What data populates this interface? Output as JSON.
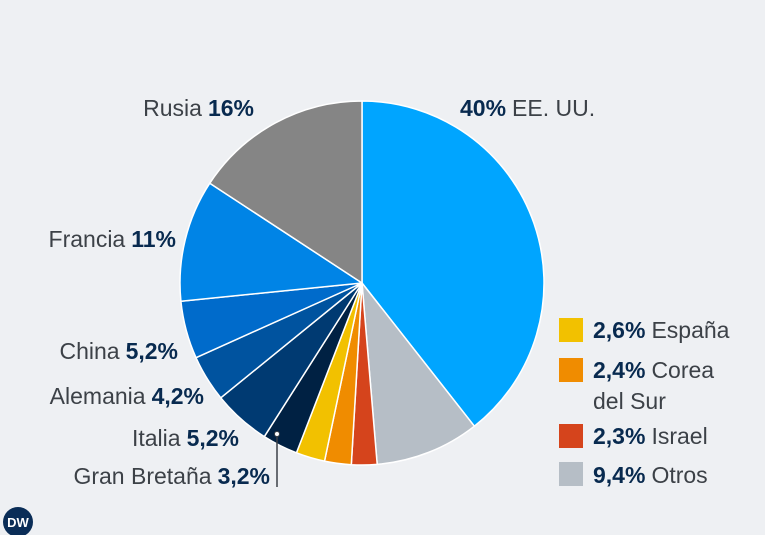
{
  "chart_data": {
    "type": "pie",
    "start_angle_deg": 0,
    "direction": "clockwise",
    "slices": [
      {
        "label": "EE. UU.",
        "value_label": "40%",
        "value": 40.0,
        "color": "#00a5ff"
      },
      {
        "label": "Otros",
        "value_label": "9,4%",
        "value": 9.4,
        "color": "#b6bec6"
      },
      {
        "label": "Israel",
        "value_label": "2,3%",
        "value": 2.3,
        "color": "#d5441c"
      },
      {
        "label": "Corea del Sur",
        "value_label": "2,4%",
        "value": 2.4,
        "color": "#f08c00"
      },
      {
        "label": "España",
        "value_label": "2,6%",
        "value": 2.6,
        "color": "#f2c100"
      },
      {
        "label": "Gran Bretaña",
        "value_label": "3,2%",
        "value": 3.2,
        "color": "#002143"
      },
      {
        "label": "Italia",
        "value_label": "5,2%",
        "value": 5.2,
        "color": "#003a72"
      },
      {
        "label": "Alemania",
        "value_label": "4,2%",
        "value": 4.2,
        "color": "#00539f"
      },
      {
        "label": "China",
        "value_label": "5,2%",
        "value": 5.2,
        "color": "#006bcb"
      },
      {
        "label": "Francia",
        "value_label": "11%",
        "value": 11.0,
        "color": "#0084e6"
      },
      {
        "label": "Rusia",
        "value_label": "16%",
        "value": 16.0,
        "color": "#858585"
      }
    ],
    "legend": {
      "placement": "right",
      "items": [
        {
          "value_label": "2,6%",
          "label_lines": [
            "España"
          ],
          "color": "#f2c100"
        },
        {
          "value_label": "2,4%",
          "label_lines": [
            "Corea",
            "del Sur"
          ],
          "color": "#f08c00"
        },
        {
          "value_label": "2,3%",
          "label_lines": [
            "Israel"
          ],
          "color": "#d5441c"
        },
        {
          "value_label": "9,4%",
          "label_lines": [
            "Otros"
          ],
          "color": "#b6bec6"
        }
      ]
    },
    "outside_labels": [
      {
        "value_label": "40%",
        "label": "EE. UU.",
        "value_first": true
      },
      {
        "label": "Rusia",
        "value_label": "16%",
        "value_first": false
      },
      {
        "label": "Francia",
        "value_label": "11%",
        "value_first": false
      },
      {
        "label": "China",
        "value_label": "5,2%",
        "value_first": false
      },
      {
        "label": "Alemania",
        "value_label": "4,2%",
        "value_first": false
      },
      {
        "label": "Italia",
        "value_label": "5,2%",
        "value_first": false
      },
      {
        "label": "Gran Bretaña",
        "value_label": "3,2%",
        "value_first": false
      }
    ]
  },
  "logo": {
    "text": "DW"
  }
}
